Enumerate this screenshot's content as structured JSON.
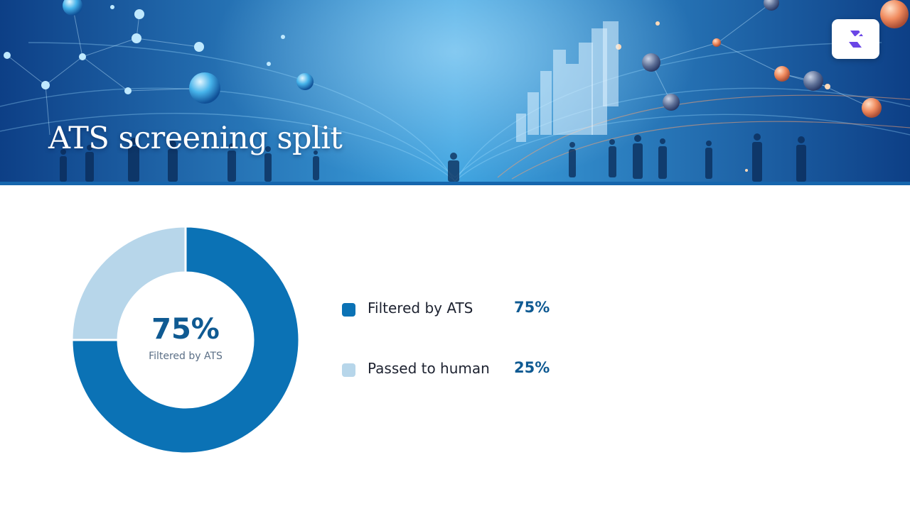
{
  "slide": {
    "title": "ATS screening split",
    "banner_colors": {
      "deep": "#0d3f86",
      "mid": "#1f74c2",
      "light": "#3da3e0",
      "rule": "#1666ad"
    },
    "logo": {
      "icon": "brand-logo-icon",
      "color": "#6b46e6"
    }
  },
  "chart_data": {
    "type": "pie",
    "variant": "donut",
    "categories": [
      "Filtered by ATS",
      "Passed to human"
    ],
    "values": [
      75,
      25
    ],
    "value_labels": [
      "75%",
      "25%"
    ],
    "colors": [
      "#0b72b5",
      "#b7d6ea"
    ],
    "center": {
      "value": "75%",
      "label": "Filtered by ATS"
    },
    "legend_position": "right",
    "title": ""
  },
  "accent_text_color": "#0f5a92"
}
